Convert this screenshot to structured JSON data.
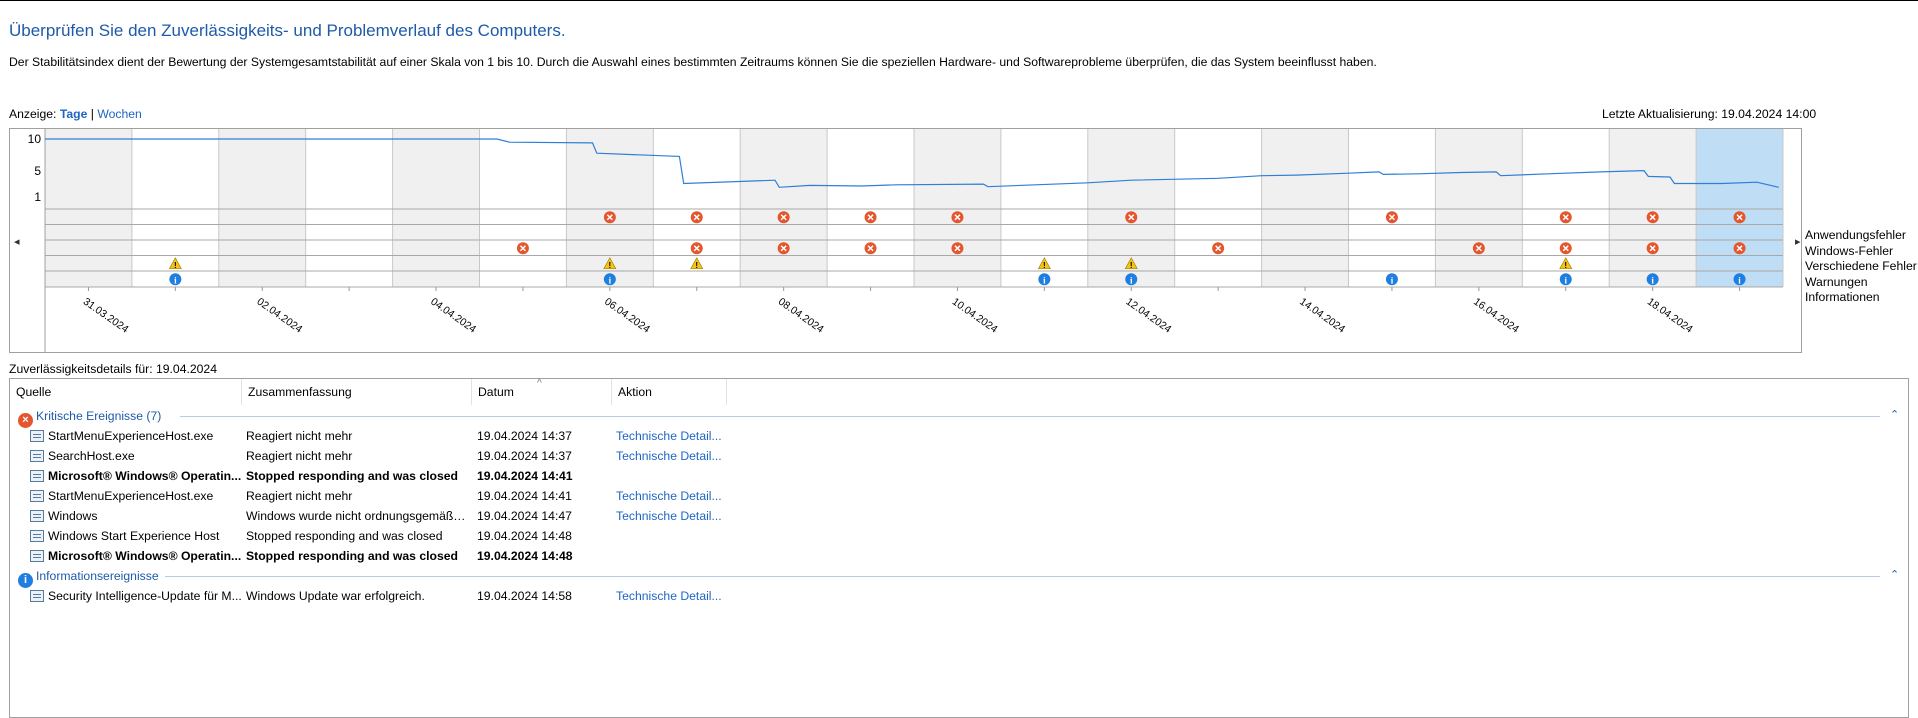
{
  "header": {
    "title": "Überprüfen Sie den Zuverlässigkeits- und Problemverlauf des Computers.",
    "description": "Der Stabilitätsindex dient der Bewertung der Systemgesamtstabilität auf einer Skala von 1 bis 10. Durch die Auswahl eines bestimmten Zeitraums können Sie die speziellen Hardware- und Softwareprobleme überprüfen, die das System beeinflusst haben."
  },
  "view": {
    "label": "Anzeige:",
    "days": "Tage",
    "separator": "|",
    "weeks": "Wochen"
  },
  "last_update": "Letzte Aktualisierung: 19.04.2024 14:00",
  "chart": {
    "y_ticks": [
      "10",
      "5",
      "1"
    ],
    "nav_left": "◂",
    "nav_right": "▸",
    "date_labels": [
      "31.03.2024",
      "02.04.2024",
      "04.04.2024",
      "06.04.2024",
      "08.04.2024",
      "10.04.2024",
      "12.04.2024",
      "14.04.2024",
      "16.04.2024",
      "18.04.2024"
    ],
    "legend": [
      "Anwendungsfehler",
      "Windows-Fehler",
      "Verschiedene Fehler",
      "Warnungen",
      "Informationen"
    ],
    "colors": {
      "line": "#2e7fd6",
      "shade": "#f0f0f0",
      "selected": "#bfddf5",
      "error": "#e4572e",
      "warning": "#f3c316",
      "info": "#1f7fe0"
    }
  },
  "chart_data": {
    "type": "line",
    "title": "",
    "ylabel": "",
    "ylim": [
      1,
      10
    ],
    "days": 20,
    "selected_day": 19,
    "stability_index": [
      [
        0,
        10.0
      ],
      [
        5.2,
        10.0
      ],
      [
        5.35,
        9.5
      ],
      [
        6.3,
        9.4
      ],
      [
        6.35,
        7.8
      ],
      [
        7.3,
        7.3
      ],
      [
        7.35,
        3.1
      ],
      [
        8.4,
        3.6
      ],
      [
        8.45,
        2.5
      ],
      [
        8.8,
        2.8
      ],
      [
        9.4,
        2.7
      ],
      [
        9.8,
        2.9
      ],
      [
        10.8,
        3.0
      ],
      [
        10.85,
        2.6
      ],
      [
        11.4,
        2.9
      ],
      [
        12.0,
        3.2
      ],
      [
        12.5,
        3.6
      ],
      [
        13.5,
        3.9
      ],
      [
        14.0,
        4.3
      ],
      [
        14.4,
        4.4
      ],
      [
        15.0,
        4.7
      ],
      [
        15.35,
        4.9
      ],
      [
        15.4,
        4.5
      ],
      [
        15.8,
        4.6
      ],
      [
        16.3,
        4.8
      ],
      [
        16.7,
        4.9
      ],
      [
        16.75,
        4.3
      ],
      [
        17.3,
        4.6
      ],
      [
        17.9,
        4.9
      ],
      [
        18.4,
        5.1
      ],
      [
        18.45,
        4.2
      ],
      [
        18.7,
        4.1
      ],
      [
        18.75,
        3.1
      ],
      [
        19.0,
        3.1
      ],
      [
        19.3,
        3.1
      ],
      [
        19.7,
        3.3
      ],
      [
        19.95,
        2.5
      ]
    ],
    "events": {
      "Anwendungsfehler": [
        6,
        7,
        8,
        9,
        10,
        12,
        15,
        17,
        18,
        19
      ],
      "Windows-Fehler": [],
      "Verschiedene Fehler": [
        5,
        7,
        8,
        9,
        10,
        13,
        16,
        17,
        18,
        19
      ],
      "Warnungen": [
        1,
        6,
        7,
        11,
        12,
        17
      ],
      "Informationen": [
        1,
        6,
        11,
        12,
        15,
        17,
        18,
        19
      ]
    }
  },
  "details": {
    "header": "Zuverlässigkeitsdetails für: 19.04.2024",
    "columns": [
      "Quelle",
      "Zusammenfassung",
      "Datum",
      "Aktion"
    ],
    "sort_indicator": "^",
    "groups": [
      {
        "title": "Kritische Ereignisse (7)",
        "icon": "error-icon",
        "collapse": "⌃",
        "rows": [
          {
            "source": "StartMenuExperienceHost.exe",
            "summary": "Reagiert nicht mehr",
            "date": "19.04.2024 14:37",
            "action": "Technische Detail...",
            "bold": false
          },
          {
            "source": "SearchHost.exe",
            "summary": "Reagiert nicht mehr",
            "date": "19.04.2024 14:37",
            "action": "Technische Detail...",
            "bold": false
          },
          {
            "source": "Microsoft® Windows® Operatin...",
            "summary": "Stopped responding and was closed",
            "date": "19.04.2024 14:41",
            "action": "",
            "bold": true
          },
          {
            "source": "StartMenuExperienceHost.exe",
            "summary": "Reagiert nicht mehr",
            "date": "19.04.2024 14:41",
            "action": "Technische Detail...",
            "bold": false
          },
          {
            "source": "Windows",
            "summary": "Windows wurde nicht ordnungsgemäß ...",
            "date": "19.04.2024 14:47",
            "action": "Technische Detail...",
            "bold": false
          },
          {
            "source": "Windows Start Experience Host",
            "summary": "Stopped responding and was closed",
            "date": "19.04.2024 14:48",
            "action": "",
            "bold": false
          },
          {
            "source": "Microsoft® Windows® Operatin...",
            "summary": "Stopped responding and was closed",
            "date": "19.04.2024 14:48",
            "action": "",
            "bold": true
          }
        ]
      },
      {
        "title": "Informationsereignisse",
        "icon": "info-icon",
        "collapse": "⌃",
        "rows": [
          {
            "source": "Security Intelligence-Update für M...",
            "summary": "Windows Update war erfolgreich.",
            "date": "19.04.2024 14:58",
            "action": "Technische Detail...",
            "bold": false
          }
        ]
      }
    ]
  }
}
